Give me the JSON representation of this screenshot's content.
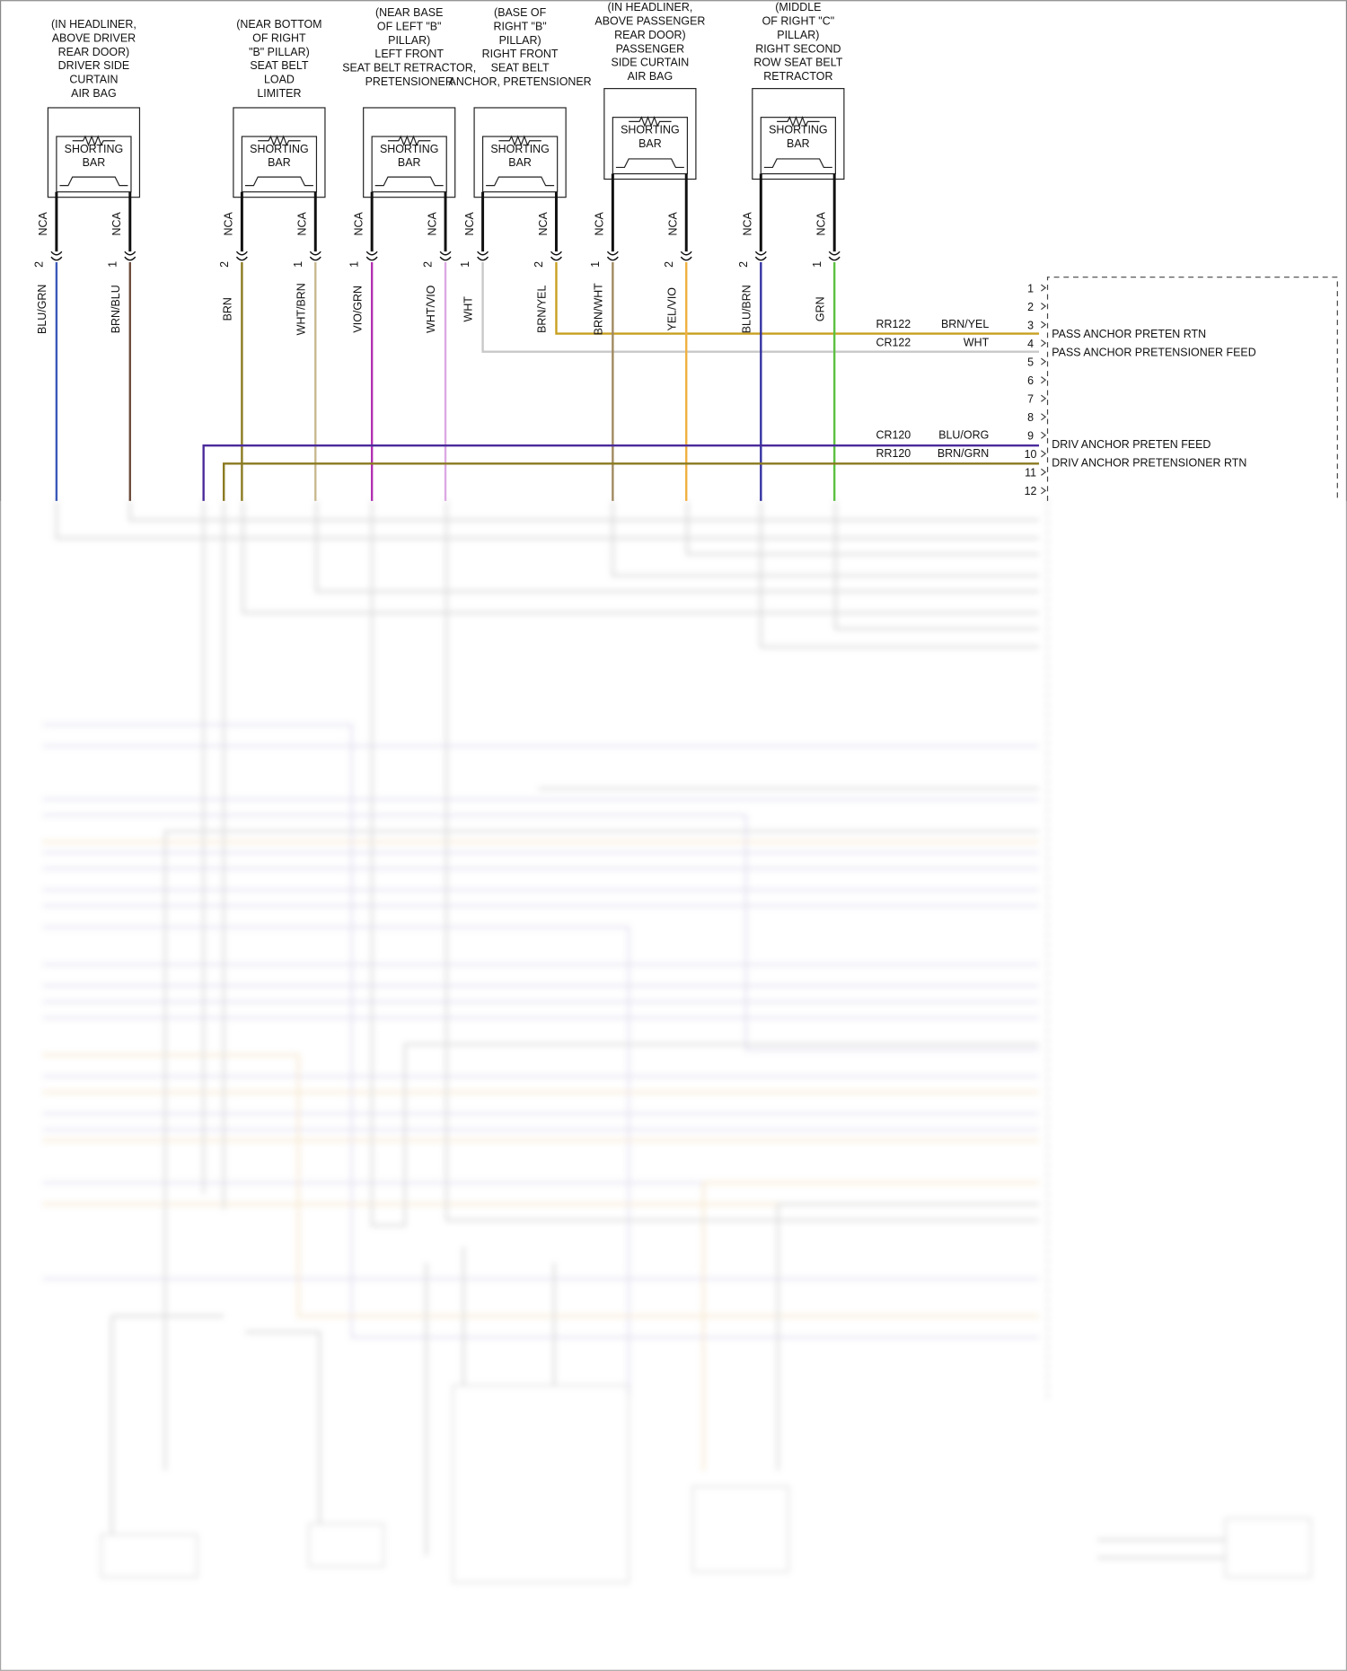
{
  "components": [
    {
      "label": [
        "(IN HEADLINER,",
        "ABOVE DRIVER",
        "REAR DOOR)",
        "DRIVER SIDE",
        "CURTAIN",
        "AIR BAG"
      ],
      "bar": [
        "SHORTING",
        "BAR"
      ],
      "pins": [
        {
          "nca": "NCA",
          "pin": "2",
          "wire": "BLU/GRN"
        },
        {
          "nca": "NCA",
          "pin": "1",
          "wire": "BRN/BLU"
        }
      ]
    },
    {
      "label": [
        "(NEAR BOTTOM",
        "OF RIGHT",
        "\"B\" PILLAR)",
        "SEAT BELT",
        "LOAD",
        "LIMITER"
      ],
      "bar": [
        "SHORTING",
        "BAR"
      ],
      "pins": [
        {
          "nca": "NCA",
          "pin": "2",
          "wire": "BRN"
        },
        {
          "nca": "NCA",
          "pin": "1",
          "wire": "WHT/BRN"
        }
      ]
    },
    {
      "label": [
        "(NEAR BASE",
        "OF LEFT \"B\"",
        "PILLAR)",
        "LEFT FRONT",
        "SEAT BELT RETRACTOR,",
        "PRETENSIONER"
      ],
      "bar": [
        "SHORTING",
        "BAR"
      ],
      "pins": [
        {
          "nca": "NCA",
          "pin": "1",
          "wire": "VIO/GRN"
        },
        {
          "nca": "NCA",
          "pin": "2",
          "wire": "WHT/VIO"
        }
      ]
    },
    {
      "label": [
        "(BASE OF",
        "RIGHT \"B\"",
        "PILLAR)",
        "RIGHT FRONT",
        "SEAT BELT",
        "ANCHOR, PRETENSIONER"
      ],
      "bar": [
        "SHORTING",
        "BAR"
      ],
      "pins": [
        {
          "nca": "NCA",
          "pin": "1",
          "wire": "WHT"
        },
        {
          "nca": "NCA",
          "pin": "2",
          "wire": "BRN/YEL"
        }
      ]
    },
    {
      "label": [
        "(IN HEADLINER,",
        "ABOVE PASSENGER",
        "REAR DOOR)",
        "PASSENGER",
        "SIDE CURTAIN",
        "AIR BAG"
      ],
      "bar": [
        "SHORTING",
        "BAR"
      ],
      "pins": [
        {
          "nca": "NCA",
          "pin": "1",
          "wire": "BRN/WHT"
        },
        {
          "nca": "NCA",
          "pin": "2",
          "wire": "YEL/VIO"
        }
      ]
    },
    {
      "label": [
        "(MIDDLE",
        "OF RIGHT \"C\"",
        "PILLAR)",
        "RIGHT SECOND",
        "ROW SEAT BELT",
        "RETRACTOR"
      ],
      "bar": [
        "SHORTING",
        "BAR"
      ],
      "pins": [
        {
          "nca": "NCA",
          "pin": "2",
          "wire": "BLU/BRN"
        },
        {
          "nca": "NCA",
          "pin": "1",
          "wire": "GRN"
        }
      ]
    }
  ],
  "connector": {
    "pins": [
      "1",
      "2",
      "3",
      "4",
      "5",
      "6",
      "7",
      "8",
      "9",
      "10",
      "11",
      "12"
    ],
    "circuits": [
      {
        "circuit": "RR122",
        "wire": "BRN/YEL",
        "function": "PASS ANCHOR PRETEN RTN"
      },
      {
        "circuit": "CR122",
        "wire": "WHT",
        "function": "PASS ANCHOR PRETENSIONER FEED"
      },
      {
        "circuit": "CR120",
        "wire": "BLU/ORG",
        "function": "DRIV ANCHOR PRETEN FEED"
      },
      {
        "circuit": "RR120",
        "wire": "BRN/GRN",
        "function": "DRIV ANCHOR PRETENSIONER RTN"
      }
    ]
  }
}
